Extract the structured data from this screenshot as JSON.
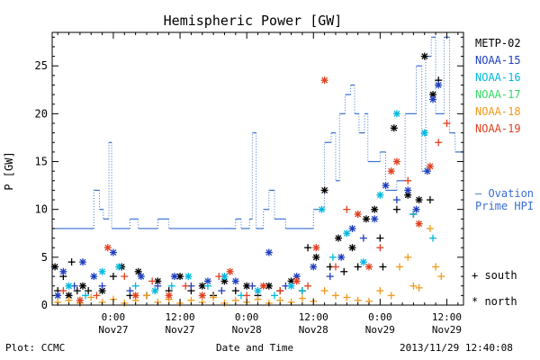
{
  "footer": {
    "plot_credit": "Plot: CCMC",
    "xlabel": "Date and Time",
    "timestamp": "2013/11/29 12:40:08"
  },
  "chart_data": {
    "type": "scatter",
    "title": "Hemispheric Power [GW]",
    "ylabel": "P [GW]",
    "xlabel": "Date and Time",
    "ylim": [
      0,
      28.5
    ],
    "xlim": [
      -11,
      63
    ],
    "x_unit": "hours since Nov27 0:00",
    "y_ticks": [
      0,
      5,
      10,
      15,
      20,
      25
    ],
    "x_ticks": [
      {
        "x": 0,
        "time": "0:00",
        "day": "Nov27"
      },
      {
        "x": 12,
        "time": "12:00",
        "day": "Nov27"
      },
      {
        "x": 24,
        "time": "0:00",
        "day": "Nov28"
      },
      {
        "x": 36,
        "time": "12:00",
        "day": "Nov28"
      },
      {
        "x": 48,
        "time": "0:00",
        "day": "Nov29"
      },
      {
        "x": 60,
        "time": "12:00",
        "day": "Nov29"
      }
    ],
    "legend": [
      {
        "name": "METP-02",
        "color": "#000000"
      },
      {
        "name": "NOAA-15",
        "color": "#1f3fbf"
      },
      {
        "name": "NOAA-16",
        "color": "#00b8e0"
      },
      {
        "name": "NOAA-17",
        "color": "#33d966"
      },
      {
        "name": "NOAA-18",
        "color": "#f09a1a"
      },
      {
        "name": "NOAA-19",
        "color": "#e0401f"
      }
    ],
    "ovation_label": [
      "– Ovation",
      "Prime HPI"
    ],
    "ovation_color": "#3a6fd1",
    "ovation_step": [
      [
        -11,
        8
      ],
      [
        -4.5,
        8
      ],
      [
        -3.5,
        12
      ],
      [
        -2.5,
        10
      ],
      [
        -1.8,
        9
      ],
      [
        -0.8,
        17
      ],
      [
        -0.3,
        8
      ],
      [
        3,
        9
      ],
      [
        4.5,
        8
      ],
      [
        8,
        9
      ],
      [
        10,
        8
      ],
      [
        20,
        8
      ],
      [
        22,
        9
      ],
      [
        23,
        8
      ],
      [
        24.5,
        9
      ],
      [
        25,
        18
      ],
      [
        25.7,
        8
      ],
      [
        27,
        10
      ],
      [
        28,
        12
      ],
      [
        29,
        9
      ],
      [
        31,
        8
      ],
      [
        36,
        10
      ],
      [
        38,
        17
      ],
      [
        39.2,
        18
      ],
      [
        40,
        13
      ],
      [
        40.7,
        20
      ],
      [
        41.7,
        22
      ],
      [
        42.7,
        23
      ],
      [
        43.4,
        20
      ],
      [
        44.2,
        18
      ],
      [
        45.2,
        20
      ],
      [
        45.8,
        15
      ],
      [
        48,
        16
      ],
      [
        49,
        12
      ],
      [
        51,
        13
      ],
      [
        52.5,
        20
      ],
      [
        54.5,
        25
      ],
      [
        55.5,
        14
      ],
      [
        56.2,
        26
      ],
      [
        57.2,
        28
      ],
      [
        58,
        20
      ],
      [
        59.5,
        28
      ],
      [
        60.5,
        18
      ],
      [
        61.5,
        16
      ],
      [
        63,
        16
      ]
    ],
    "symbols": [
      {
        "name": "south",
        "mark": "+"
      },
      {
        "name": "north",
        "mark": "*"
      }
    ],
    "series": [
      {
        "name": "METP-02",
        "color": "#000000",
        "points": [
          [
            -10.5,
            4,
            "n"
          ],
          [
            -10,
            1.5,
            "s"
          ],
          [
            -9,
            3,
            "s"
          ],
          [
            -8,
            1,
            "n"
          ],
          [
            -7.5,
            4.5,
            "s"
          ],
          [
            -6.5,
            1.5,
            "s"
          ],
          [
            -5.5,
            2,
            "n"
          ],
          [
            -4.5,
            1.5,
            "s"
          ],
          [
            -2,
            1.5,
            "n"
          ],
          [
            0,
            3,
            "s"
          ],
          [
            1.5,
            4,
            "n"
          ],
          [
            3,
            1,
            "s"
          ],
          [
            4.5,
            3.5,
            "n"
          ],
          [
            6,
            1,
            "s"
          ],
          [
            8,
            2.5,
            "n"
          ],
          [
            10,
            1.5,
            "s"
          ],
          [
            12,
            3,
            "n"
          ],
          [
            14,
            1.5,
            "s"
          ],
          [
            16,
            2,
            "n"
          ],
          [
            18,
            1,
            "s"
          ],
          [
            20,
            2.5,
            "n"
          ],
          [
            22,
            1.5,
            "s"
          ],
          [
            24,
            2,
            "n"
          ],
          [
            26,
            1,
            "s"
          ],
          [
            28,
            2,
            "n"
          ],
          [
            30,
            1.5,
            "s"
          ],
          [
            32,
            2.5,
            "n"
          ],
          [
            34,
            1.5,
            "s"
          ],
          [
            35,
            6,
            "s"
          ],
          [
            36.5,
            5,
            "n"
          ],
          [
            38,
            12,
            "n"
          ],
          [
            39,
            4,
            "s"
          ],
          [
            40.5,
            7,
            "n"
          ],
          [
            41.5,
            3.5,
            "s"
          ],
          [
            43,
            6,
            "n"
          ],
          [
            44,
            4,
            "s"
          ],
          [
            45.5,
            9,
            "n"
          ],
          [
            47,
            10,
            "n"
          ],
          [
            48,
            7,
            "s"
          ],
          [
            48.5,
            4,
            "s"
          ],
          [
            50.5,
            18.5,
            "n"
          ],
          [
            51,
            10,
            "s"
          ],
          [
            53,
            11.5,
            "n"
          ],
          [
            54,
            9.5,
            "s"
          ],
          [
            55,
            11,
            "n"
          ],
          [
            56,
            26,
            "n"
          ],
          [
            57,
            11,
            "s"
          ],
          [
            57.5,
            22,
            "n"
          ],
          [
            58.5,
            23.5,
            "s"
          ]
        ]
      },
      {
        "name": "NOAA-15",
        "color": "#1f3fbf",
        "points": [
          [
            -10,
            1,
            "n"
          ],
          [
            -9,
            3.5,
            "n"
          ],
          [
            -7,
            2,
            "s"
          ],
          [
            -5.5,
            4.5,
            "n"
          ],
          [
            -3.5,
            3,
            "n"
          ],
          [
            -2,
            2,
            "s"
          ],
          [
            0,
            5.5,
            "n"
          ],
          [
            3,
            1.5,
            "s"
          ],
          [
            5,
            3,
            "n"
          ],
          [
            8,
            2,
            "s"
          ],
          [
            11,
            3,
            "n"
          ],
          [
            14,
            2,
            "s"
          ],
          [
            17,
            2.5,
            "n"
          ],
          [
            19.5,
            1.5,
            "s"
          ],
          [
            22,
            2.5,
            "n"
          ],
          [
            25,
            2,
            "s"
          ],
          [
            28,
            5.5,
            "n"
          ],
          [
            31,
            2,
            "s"
          ],
          [
            33,
            3,
            "n"
          ],
          [
            36,
            4,
            "n"
          ],
          [
            39,
            3,
            "s"
          ],
          [
            41,
            5,
            "n"
          ],
          [
            43,
            8,
            "n"
          ],
          [
            45,
            7,
            "s"
          ],
          [
            47,
            9,
            "n"
          ],
          [
            49,
            12.5,
            "n"
          ],
          [
            51,
            11,
            "s"
          ],
          [
            53,
            12,
            "n"
          ],
          [
            54.5,
            10,
            "n"
          ],
          [
            56.5,
            14,
            "n"
          ],
          [
            57.5,
            21.5,
            "n"
          ],
          [
            58.5,
            23,
            "n"
          ]
        ]
      },
      {
        "name": "NOAA-16",
        "color": "#00b8e0",
        "points": [
          [
            -8,
            2,
            "n"
          ],
          [
            -5,
            1,
            "s"
          ],
          [
            -2,
            3.5,
            "n"
          ],
          [
            1,
            4,
            "n"
          ],
          [
            4,
            2,
            "s"
          ],
          [
            7.5,
            1.5,
            "n"
          ],
          [
            10.5,
            2,
            "s"
          ],
          [
            13.5,
            3,
            "n"
          ],
          [
            17,
            2,
            "s"
          ],
          [
            20,
            3,
            "n"
          ],
          [
            23,
            1,
            "s"
          ],
          [
            26,
            1.5,
            "n"
          ],
          [
            29,
            1,
            "s"
          ],
          [
            32,
            2,
            "n"
          ],
          [
            34,
            1.5,
            "s"
          ],
          [
            37.5,
            10,
            "n"
          ],
          [
            39.5,
            5,
            "s"
          ],
          [
            42,
            7.5,
            "n"
          ],
          [
            45,
            4.5,
            "n"
          ],
          [
            48,
            11.5,
            "n"
          ],
          [
            51,
            20,
            "n"
          ],
          [
            54,
            9.5,
            "s"
          ],
          [
            56,
            18,
            "n"
          ],
          [
            57.5,
            7,
            "s"
          ]
        ]
      },
      {
        "name": "NOAA-18",
        "color": "#f09a1a",
        "points": [
          [
            -10,
            0.3,
            "s"
          ],
          [
            -8,
            0.5,
            "s"
          ],
          [
            -6,
            0.2,
            "s"
          ],
          [
            -4,
            0.8,
            "s"
          ],
          [
            -2,
            0.3,
            "s"
          ],
          [
            0,
            0.6,
            "s"
          ],
          [
            2,
            0.2,
            "s"
          ],
          [
            4,
            0.5,
            "s"
          ],
          [
            6,
            1,
            "s"
          ],
          [
            8,
            0.3,
            "s"
          ],
          [
            10,
            0.6,
            "s"
          ],
          [
            12,
            0.2,
            "s"
          ],
          [
            14,
            0.5,
            "s"
          ],
          [
            16,
            0.3,
            "s"
          ],
          [
            18,
            0.8,
            "s"
          ],
          [
            20,
            0.2,
            "s"
          ],
          [
            22,
            0.5,
            "s"
          ],
          [
            24,
            0.3,
            "s"
          ],
          [
            26,
            0.6,
            "s"
          ],
          [
            28,
            0.2,
            "s"
          ],
          [
            30,
            0.5,
            "s"
          ],
          [
            32,
            0.3,
            "s"
          ],
          [
            34,
            0.7,
            "s"
          ],
          [
            36,
            0.4,
            "s"
          ],
          [
            38,
            1.5,
            "s"
          ],
          [
            40,
            1,
            "s"
          ],
          [
            42,
            0.8,
            "s"
          ],
          [
            44,
            0.5,
            "s"
          ],
          [
            46,
            0.4,
            "s"
          ],
          [
            48,
            1.5,
            "s"
          ],
          [
            50,
            1,
            "s"
          ],
          [
            51.5,
            4,
            "s"
          ],
          [
            53,
            5,
            "s"
          ],
          [
            54,
            2,
            "s"
          ],
          [
            55,
            1.8,
            "s"
          ],
          [
            57,
            8,
            "s"
          ],
          [
            58,
            4,
            "s"
          ],
          [
            59,
            3,
            "s"
          ]
        ]
      },
      {
        "name": "NOAA-19",
        "color": "#e0401f",
        "points": [
          [
            -9,
            1.5,
            "s"
          ],
          [
            -6,
            0.5,
            "n"
          ],
          [
            -3,
            1,
            "s"
          ],
          [
            -1,
            6,
            "n"
          ],
          [
            2,
            3,
            "s"
          ],
          [
            4,
            1,
            "n"
          ],
          [
            7,
            2.5,
            "s"
          ],
          [
            10,
            1,
            "n"
          ],
          [
            13,
            2,
            "s"
          ],
          [
            16,
            1,
            "n"
          ],
          [
            19,
            3,
            "s"
          ],
          [
            21,
            3.5,
            "n"
          ],
          [
            24,
            1,
            "s"
          ],
          [
            27,
            2,
            "n"
          ],
          [
            30,
            1.5,
            "s"
          ],
          [
            33,
            2.5,
            "n"
          ],
          [
            35,
            2,
            "s"
          ],
          [
            36.5,
            6,
            "n"
          ],
          [
            38,
            23.5,
            "n"
          ],
          [
            40,
            4,
            "s"
          ],
          [
            42,
            10,
            "s"
          ],
          [
            44,
            9.5,
            "n"
          ],
          [
            46,
            4,
            "n"
          ],
          [
            48,
            6,
            "s"
          ],
          [
            50,
            14,
            "n"
          ],
          [
            51,
            15,
            "n"
          ],
          [
            53,
            13,
            "s"
          ],
          [
            55,
            8.5,
            "n"
          ],
          [
            57,
            14.5,
            "n"
          ],
          [
            58.5,
            17,
            "s"
          ],
          [
            60,
            19,
            "s"
          ]
        ]
      }
    ]
  }
}
